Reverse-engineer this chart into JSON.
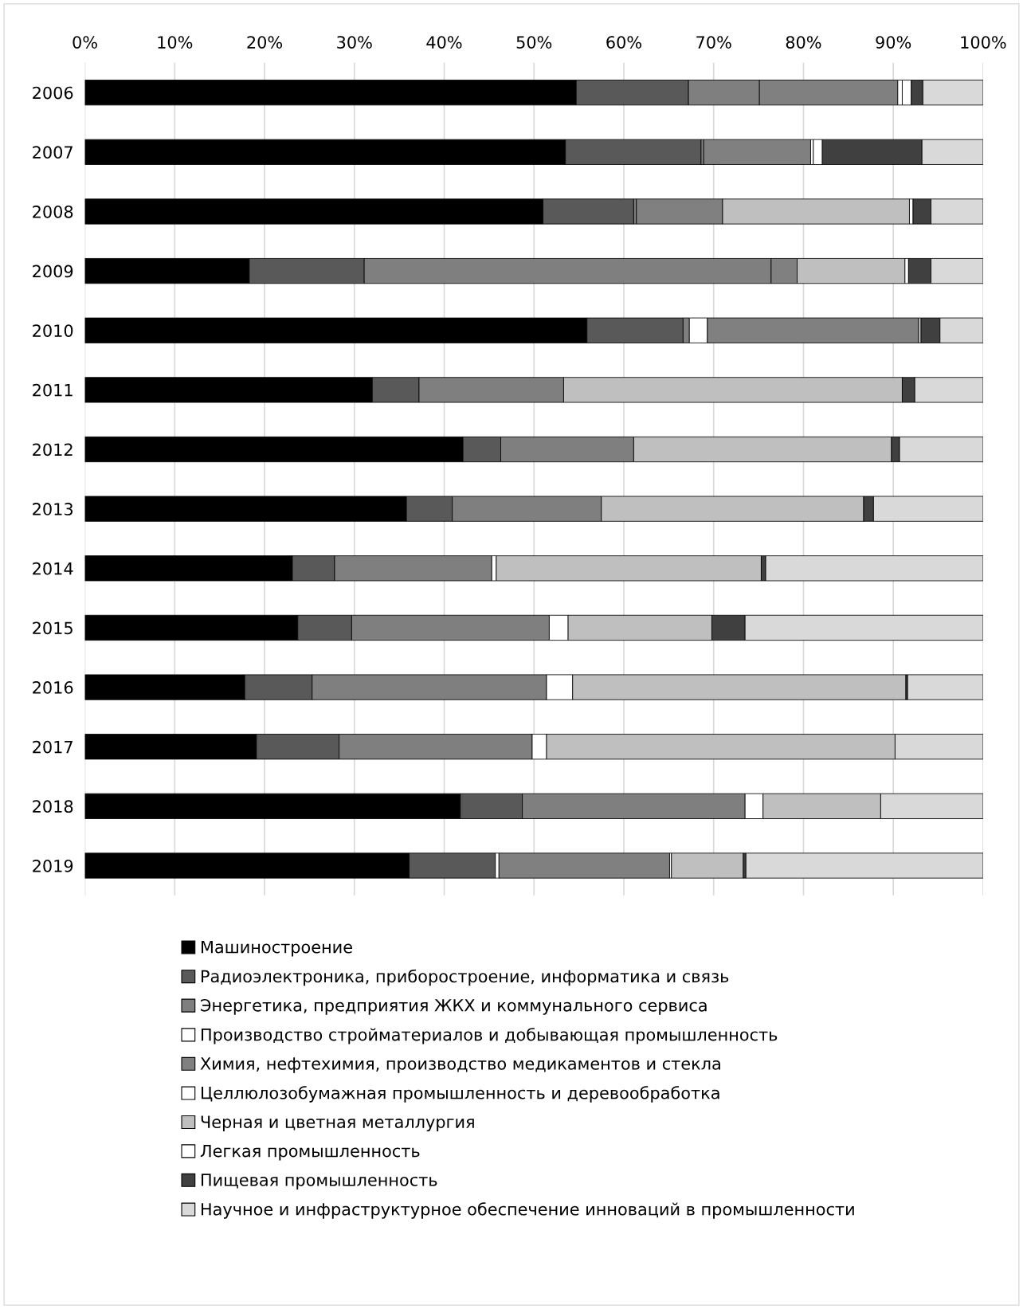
{
  "chart_data": {
    "type": "bar",
    "orientation": "horizontal",
    "stacked": true,
    "categories": [
      "2006",
      "2007",
      "2008",
      "2009",
      "2010",
      "2011",
      "2012",
      "2013",
      "2014",
      "2015",
      "2016",
      "2017",
      "2018",
      "2019"
    ],
    "series": [
      {
        "name": "Машиностроение",
        "color": "#000000",
        "values": [
          54.7,
          53.5,
          51.0,
          18.3,
          55.9,
          32.0,
          42.1,
          35.8,
          23.1,
          23.7,
          17.8,
          19.1,
          41.8,
          36.1
        ]
      },
      {
        "name": "Радиоэлектроника, приборостроение, информатика и связь",
        "color": "#595959",
        "values": [
          12.5,
          15.1,
          10.1,
          12.8,
          10.7,
          5.2,
          4.2,
          5.1,
          4.7,
          6.0,
          7.5,
          9.2,
          6.9,
          9.6
        ]
      },
      {
        "name": "Энергетика, предприятия ЖКХ и коммунального сервиса",
        "color": "#7f7f7f",
        "values": [
          7.9,
          0.3,
          0.3,
          45.3,
          0.7,
          16.1,
          14.8,
          16.6,
          17.5,
          22.0,
          26.1,
          21.5,
          24.8,
          null
        ]
      },
      {
        "name": "Производство стройматериалов и добывающая промышленность",
        "color": "#ffffff",
        "values": [
          null,
          null,
          null,
          null,
          2.0,
          null,
          null,
          null,
          0.5,
          2.1,
          2.9,
          1.6,
          2.0,
          0.4
        ]
      },
      {
        "name": "Химия, нефтехимия, производство медикаментов и стекла",
        "color": "#808080",
        "values": [
          15.4,
          11.9,
          9.6,
          2.9,
          23.5,
          null,
          null,
          null,
          null,
          null,
          null,
          null,
          null,
          19.0
        ]
      },
      {
        "name": "Целлюлозобумажная промышленность и деревообработка",
        "color": "#ffffff",
        "values": [
          0.5,
          0.3,
          null,
          null,
          null,
          null,
          null,
          null,
          null,
          null,
          null,
          null,
          null,
          0.2
        ]
      },
      {
        "name": "Черная и цветная металлургия",
        "color": "#bfbfbf",
        "values": [
          null,
          null,
          20.8,
          12.0,
          0.3,
          37.7,
          28.7,
          29.2,
          29.5,
          16.0,
          37.1,
          38.8,
          13.1,
          8.0
        ]
      },
      {
        "name": "Легкая промышленность",
        "color": "#ffffff",
        "values": [
          1.0,
          1.0,
          0.4,
          0.4,
          null,
          null,
          null,
          null,
          null,
          null,
          null,
          null,
          null,
          null
        ]
      },
      {
        "name": "Пищевая промышленность",
        "color": "#404040",
        "values": [
          1.3,
          11.1,
          2.0,
          2.5,
          2.1,
          1.4,
          0.9,
          1.1,
          0.5,
          3.7,
          0.2,
          null,
          null,
          0.3
        ]
      },
      {
        "name": "Научное и инфраструктурное обеспечение инноваций в промышленности",
        "color": "#d9d9d9",
        "values": [
          6.7,
          6.8,
          5.8,
          5.8,
          4.8,
          7.6,
          9.3,
          12.2,
          24.2,
          26.5,
          8.4,
          9.8,
          11.4,
          26.4
        ]
      }
    ],
    "xlim": [
      0,
      100
    ],
    "xticks": [
      {
        "value": 0,
        "label": "0%"
      },
      {
        "value": 10,
        "label": "10%"
      },
      {
        "value": 20,
        "label": "20%"
      },
      {
        "value": 30,
        "label": "30%"
      },
      {
        "value": 40,
        "label": "40%"
      },
      {
        "value": 50,
        "label": "50%"
      },
      {
        "value": 60,
        "label": "60%"
      },
      {
        "value": 70,
        "label": "70%"
      },
      {
        "value": 80,
        "label": "80%"
      },
      {
        "value": 90,
        "label": "90%"
      },
      {
        "value": 100,
        "label": "100%"
      }
    ],
    "grid": "x",
    "legend": "bottom"
  }
}
